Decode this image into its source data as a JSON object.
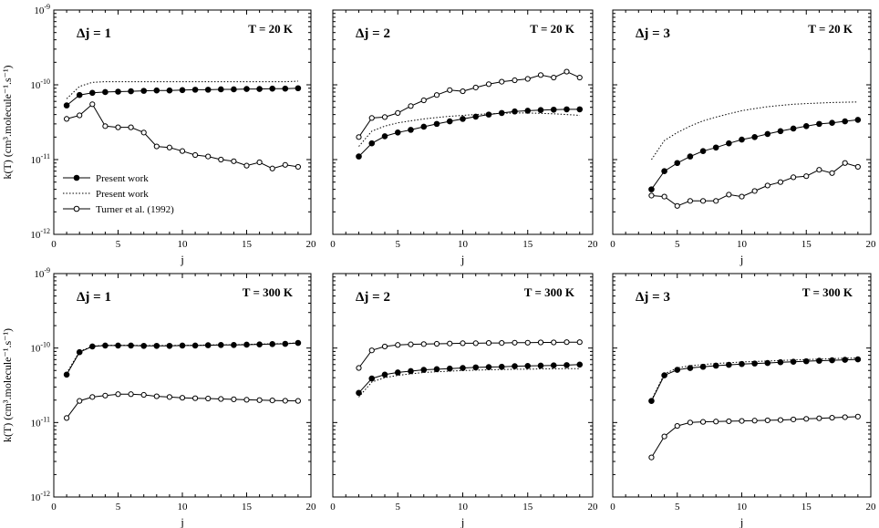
{
  "chart_data": [
    {
      "type": "line",
      "title": "Δj = 1",
      "temperature_label": "T = 20 K",
      "xlabel": "j",
      "ylabel": "k(T)  (cm³.molecule⁻¹.s⁻¹)",
      "xlim": [
        0,
        20
      ],
      "ylim": [
        1e-12,
        1e-09
      ],
      "yscale": "log",
      "x_ticks": [
        "0",
        "5",
        "10",
        "15",
        "20"
      ],
      "y_ticks": [
        "10⁻¹²",
        "10⁻¹¹",
        "10⁻¹⁰",
        "10⁻⁹"
      ],
      "legend": [
        "Present work",
        "Present work",
        "Turner et al. (1992)"
      ],
      "legend_position": "lower-left",
      "series": [
        {
          "name": "Present work",
          "style": "solid-filled-circles",
          "x": [
            1,
            2,
            3,
            4,
            5,
            6,
            7,
            8,
            9,
            10,
            11,
            12,
            13,
            14,
            15,
            16,
            17,
            18,
            19
          ],
          "values": [
            5.3e-11,
            7.3e-11,
            7.8e-11,
            8e-11,
            8.1e-11,
            8.2e-11,
            8.3e-11,
            8.4e-11,
            8.4e-11,
            8.5e-11,
            8.6e-11,
            8.6e-11,
            8.7e-11,
            8.7e-11,
            8.8e-11,
            8.8e-11,
            8.9e-11,
            8.9e-11,
            9e-11
          ]
        },
        {
          "name": "Present work",
          "style": "dotted",
          "x": [
            1,
            2,
            3,
            4,
            5,
            6,
            7,
            8,
            9,
            10,
            11,
            12,
            13,
            14,
            15,
            16,
            17,
            18,
            19
          ],
          "values": [
            6.5e-11,
            9.5e-11,
            1.08e-10,
            1.1e-10,
            1.1e-10,
            1.1e-10,
            1.1e-10,
            1.1e-10,
            1.1e-10,
            1.1e-10,
            1.1e-10,
            1.1e-10,
            1.1e-10,
            1.1e-10,
            1.1e-10,
            1.1e-10,
            1.1e-10,
            1.1e-10,
            1.12e-10
          ]
        },
        {
          "name": "Turner et al. (1992)",
          "style": "solid-open-circles",
          "x": [
            1,
            2,
            3,
            4,
            5,
            6,
            7,
            8,
            9,
            10,
            11,
            12,
            13,
            14,
            15,
            16,
            17,
            18,
            19
          ],
          "values": [
            3.5e-11,
            3.9e-11,
            5.5e-11,
            2.8e-11,
            2.7e-11,
            2.7e-11,
            2.3e-11,
            1.5e-11,
            1.45e-11,
            1.3e-11,
            1.15e-11,
            1.1e-11,
            1e-11,
            9.5e-12,
            8.3e-12,
            9.2e-12,
            7.6e-12,
            8.5e-12,
            8e-12
          ]
        }
      ]
    },
    {
      "type": "line",
      "title": "Δj = 2",
      "temperature_label": "T = 20 K",
      "xlabel": "j",
      "xlim": [
        0,
        20
      ],
      "ylim": [
        1e-12,
        1e-09
      ],
      "yscale": "log",
      "x_ticks": [
        "0",
        "5",
        "10",
        "15",
        "20"
      ],
      "series": [
        {
          "style": "solid-filled-circles",
          "x": [
            2,
            3,
            4,
            5,
            6,
            7,
            8,
            9,
            10,
            11,
            12,
            13,
            14,
            15,
            16,
            17,
            18,
            19
          ],
          "values": [
            1.1e-11,
            1.65e-11,
            2.05e-11,
            2.3e-11,
            2.5e-11,
            2.75e-11,
            3e-11,
            3.25e-11,
            3.5e-11,
            3.75e-11,
            4e-11,
            4.2e-11,
            4.4e-11,
            4.5e-11,
            4.6e-11,
            4.65e-11,
            4.7e-11,
            4.7e-11
          ]
        },
        {
          "style": "dotted",
          "x": [
            2,
            3,
            4,
            5,
            6,
            7,
            8,
            9,
            10,
            11,
            12,
            13,
            14,
            15,
            16,
            17,
            18,
            19
          ],
          "values": [
            1.5e-11,
            2.4e-11,
            2.8e-11,
            3.1e-11,
            3.3e-11,
            3.5e-11,
            3.65e-11,
            3.8e-11,
            3.9e-11,
            4e-11,
            4.1e-11,
            4.15e-11,
            4.2e-11,
            4.2e-11,
            4.15e-11,
            4.1e-11,
            4e-11,
            3.9e-11
          ]
        },
        {
          "style": "solid-open-circles",
          "x": [
            2,
            3,
            4,
            5,
            6,
            7,
            8,
            9,
            10,
            11,
            12,
            13,
            14,
            15,
            16,
            17,
            18,
            19
          ],
          "values": [
            2e-11,
            3.6e-11,
            3.7e-11,
            4.2e-11,
            5.2e-11,
            6.2e-11,
            7.3e-11,
            8.5e-11,
            8.2e-11,
            9.2e-11,
            1.02e-10,
            1.1e-10,
            1.15e-10,
            1.2e-10,
            1.35e-10,
            1.25e-10,
            1.5e-10,
            1.25e-10
          ]
        }
      ]
    },
    {
      "type": "line",
      "title": "Δj = 3",
      "temperature_label": "T = 20 K",
      "xlabel": "j",
      "xlim": [
        0,
        20
      ],
      "ylim": [
        1e-12,
        1e-09
      ],
      "yscale": "log",
      "x_ticks": [
        "0",
        "5",
        "10",
        "15",
        "20"
      ],
      "series": [
        {
          "style": "solid-filled-circles",
          "x": [
            3,
            4,
            5,
            6,
            7,
            8,
            9,
            10,
            11,
            12,
            13,
            14,
            15,
            16,
            17,
            18,
            19
          ],
          "values": [
            4e-12,
            7e-12,
            9e-12,
            1.1e-11,
            1.3e-11,
            1.45e-11,
            1.65e-11,
            1.85e-11,
            2e-11,
            2.2e-11,
            2.4e-11,
            2.6e-11,
            2.8e-11,
            3e-11,
            3.1e-11,
            3.25e-11,
            3.4e-11
          ]
        },
        {
          "style": "dotted",
          "x": [
            3,
            4,
            5,
            6,
            7,
            8,
            9,
            10,
            11,
            12,
            13,
            14,
            15,
            16,
            17,
            18,
            19
          ],
          "values": [
            1e-11,
            1.8e-11,
            2.3e-11,
            2.8e-11,
            3.3e-11,
            3.7e-11,
            4.1e-11,
            4.5e-11,
            4.8e-11,
            5.1e-11,
            5.3e-11,
            5.5e-11,
            5.6e-11,
            5.7e-11,
            5.8e-11,
            5.85e-11,
            5.9e-11
          ]
        },
        {
          "style": "solid-open-circles",
          "x": [
            3,
            4,
            5,
            6,
            7,
            8,
            9,
            10,
            11,
            12,
            13,
            14,
            15,
            16,
            17,
            18,
            19
          ],
          "values": [
            3.3e-12,
            3.2e-12,
            2.4e-12,
            2.8e-12,
            2.8e-12,
            2.8e-12,
            3.4e-12,
            3.2e-12,
            3.8e-12,
            4.5e-12,
            5e-12,
            5.8e-12,
            6e-12,
            7.3e-12,
            6.6e-12,
            9e-12,
            8e-12
          ]
        }
      ]
    },
    {
      "type": "line",
      "title": "Δj = 1",
      "temperature_label": "T = 300 K",
      "xlabel": "j",
      "ylabel": "k(T)  (cm³.molecule⁻¹.s⁻¹)",
      "xlim": [
        0,
        20
      ],
      "ylim": [
        1e-12,
        1e-09
      ],
      "yscale": "log",
      "x_ticks": [
        "0",
        "5",
        "10",
        "15",
        "20"
      ],
      "y_ticks": [
        "10⁻¹²",
        "10⁻¹¹",
        "10⁻¹⁰",
        "10⁻⁹"
      ],
      "series": [
        {
          "style": "solid-filled-circles",
          "x": [
            1,
            2,
            3,
            4,
            5,
            6,
            7,
            8,
            9,
            10,
            11,
            12,
            13,
            14,
            15,
            16,
            17,
            18,
            19
          ],
          "values": [
            4.4e-11,
            8.8e-11,
            1.05e-10,
            1.08e-10,
            1.08e-10,
            1.08e-10,
            1.07e-10,
            1.07e-10,
            1.07e-10,
            1.08e-10,
            1.08e-10,
            1.09e-10,
            1.1e-10,
            1.1e-10,
            1.11e-10,
            1.12e-10,
            1.13e-10,
            1.14e-10,
            1.17e-10
          ]
        },
        {
          "style": "dotted",
          "x": [
            1,
            2,
            3,
            4,
            5,
            6,
            7,
            8,
            9,
            10,
            11,
            12,
            13,
            14,
            15,
            16,
            17,
            18,
            19
          ],
          "values": [
            4.6e-11,
            9e-11,
            1.06e-10,
            1.09e-10,
            1.09e-10,
            1.09e-10,
            1.08e-10,
            1.08e-10,
            1.08e-10,
            1.09e-10,
            1.09e-10,
            1.1e-10,
            1.11e-10,
            1.11e-10,
            1.12e-10,
            1.13e-10,
            1.14e-10,
            1.15e-10,
            1.18e-10
          ]
        },
        {
          "style": "solid-open-circles",
          "x": [
            1,
            2,
            3,
            4,
            5,
            6,
            7,
            8,
            9,
            10,
            11,
            12,
            13,
            14,
            15,
            16,
            17,
            18,
            19
          ],
          "values": [
            1.15e-11,
            1.95e-11,
            2.2e-11,
            2.3e-11,
            2.4e-11,
            2.4e-11,
            2.35e-11,
            2.25e-11,
            2.2e-11,
            2.15e-11,
            2.12e-11,
            2.1e-11,
            2.07e-11,
            2.05e-11,
            2.02e-11,
            2e-11,
            1.98e-11,
            1.96e-11,
            1.95e-11
          ]
        }
      ]
    },
    {
      "type": "line",
      "title": "Δj = 2",
      "temperature_label": "T = 300 K",
      "xlabel": "j",
      "xlim": [
        0,
        20
      ],
      "ylim": [
        1e-12,
        1e-09
      ],
      "yscale": "log",
      "x_ticks": [
        "0",
        "5",
        "10",
        "15",
        "20"
      ],
      "series": [
        {
          "style": "solid-filled-circles",
          "x": [
            2,
            3,
            4,
            5,
            6,
            7,
            8,
            9,
            10,
            11,
            12,
            13,
            14,
            15,
            16,
            17,
            18,
            19
          ],
          "values": [
            2.5e-11,
            3.9e-11,
            4.4e-11,
            4.7e-11,
            4.9e-11,
            5.1e-11,
            5.2e-11,
            5.3e-11,
            5.4e-11,
            5.5e-11,
            5.55e-11,
            5.6e-11,
            5.7e-11,
            5.75e-11,
            5.8e-11,
            5.85e-11,
            5.9e-11,
            6e-11
          ]
        },
        {
          "style": "dotted",
          "x": [
            2,
            3,
            4,
            5,
            6,
            7,
            8,
            9,
            10,
            11,
            12,
            13,
            14,
            15,
            16,
            17,
            18,
            19
          ],
          "values": [
            2.2e-11,
            3.5e-11,
            4e-11,
            4.3e-11,
            4.5e-11,
            4.7e-11,
            4.8e-11,
            4.9e-11,
            5e-11,
            5.05e-11,
            5.1e-11,
            5.15e-11,
            5.2e-11,
            5.2e-11,
            5.25e-11,
            5.25e-11,
            5.3e-11,
            5.3e-11
          ]
        },
        {
          "style": "solid-open-circles",
          "x": [
            2,
            3,
            4,
            5,
            6,
            7,
            8,
            9,
            10,
            11,
            12,
            13,
            14,
            15,
            16,
            17,
            18,
            19
          ],
          "values": [
            5.4e-11,
            9.3e-11,
            1.05e-10,
            1.1e-10,
            1.12e-10,
            1.13e-10,
            1.14e-10,
            1.15e-10,
            1.16e-10,
            1.16e-10,
            1.17e-10,
            1.17e-10,
            1.18e-10,
            1.18e-10,
            1.19e-10,
            1.19e-10,
            1.2e-10,
            1.2e-10
          ]
        }
      ]
    },
    {
      "type": "line",
      "title": "Δj = 3",
      "temperature_label": "T = 300 K",
      "xlabel": "j",
      "xlim": [
        0,
        20
      ],
      "ylim": [
        1e-12,
        1e-09
      ],
      "yscale": "log",
      "x_ticks": [
        "0",
        "5",
        "10",
        "15",
        "20"
      ],
      "series": [
        {
          "style": "solid-filled-circles",
          "x": [
            3,
            4,
            5,
            6,
            7,
            8,
            9,
            10,
            11,
            12,
            13,
            14,
            15,
            16,
            17,
            18,
            19
          ],
          "values": [
            1.95e-11,
            4.3e-11,
            5.1e-11,
            5.4e-11,
            5.6e-11,
            5.8e-11,
            5.95e-11,
            6.1e-11,
            6.2e-11,
            6.3e-11,
            6.45e-11,
            6.55e-11,
            6.65e-11,
            6.75e-11,
            6.85e-11,
            6.95e-11,
            7.05e-11
          ]
        },
        {
          "style": "dotted",
          "x": [
            3,
            4,
            5,
            6,
            7,
            8,
            9,
            10,
            11,
            12,
            13,
            14,
            15,
            16,
            17,
            18,
            19
          ],
          "values": [
            2e-11,
            4.5e-11,
            5.4e-11,
            5.8e-11,
            6e-11,
            6.2e-11,
            6.35e-11,
            6.5e-11,
            6.6e-11,
            6.7e-11,
            6.8e-11,
            6.9e-11,
            7e-11,
            7.1e-11,
            7.2e-11,
            7.3e-11,
            7.35e-11
          ]
        },
        {
          "style": "solid-open-circles",
          "x": [
            3,
            4,
            5,
            6,
            7,
            8,
            9,
            10,
            11,
            12,
            13,
            14,
            15,
            16,
            17,
            18,
            19
          ],
          "values": [
            3.4e-12,
            6.5e-12,
            9e-12,
            1e-11,
            1.02e-11,
            1.03e-11,
            1.04e-11,
            1.05e-11,
            1.06e-11,
            1.07e-11,
            1.08e-11,
            1.1e-11,
            1.12e-11,
            1.14e-11,
            1.16e-11,
            1.18e-11,
            1.2e-11
          ]
        }
      ]
    }
  ]
}
